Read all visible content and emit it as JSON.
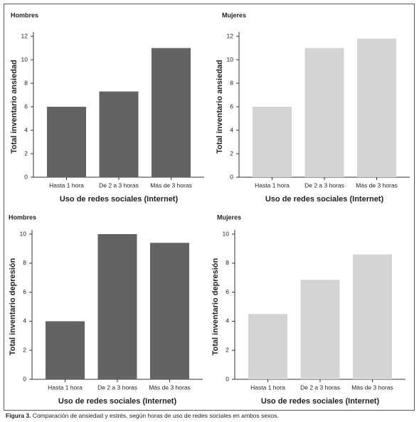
{
  "chart_data": [
    {
      "type": "bar",
      "title": "Hombres",
      "y_label": "Total inventario ansiedad",
      "x_label": "Uso de redes sociales (Internet)",
      "categories": [
        "Hasta 1 hora",
        "De 2 a 3 horas",
        "Más de 3 horas"
      ],
      "values": [
        6,
        7.3,
        11
      ],
      "color": "#636363",
      "ylim": [
        0,
        12
      ],
      "yticks": [
        0,
        2,
        4,
        6,
        8,
        10,
        12
      ]
    },
    {
      "type": "bar",
      "title": "Mujeres",
      "y_label": "Total inventario ansiedad",
      "x_label": "Uso de redes sociales (Internet)",
      "categories": [
        "Hasta 1 hora",
        "De 2 a 3 horas",
        "Más de 3 horas"
      ],
      "values": [
        6,
        11,
        11.8
      ],
      "color": "#d4d4d4",
      "ylim": [
        0,
        12
      ],
      "yticks": [
        0,
        2,
        4,
        6,
        8,
        10,
        12
      ]
    },
    {
      "type": "bar",
      "title": "Hombres",
      "y_label": "Total inventario depresión",
      "x_label": "Uso de redes sociales (Internet)",
      "categories": [
        "Hasta 1 hora",
        "De 2 a 3 horas",
        "Más de 3 horas"
      ],
      "values": [
        4,
        10,
        9.4
      ],
      "color": "#636363",
      "ylim": [
        0,
        10
      ],
      "yticks": [
        0,
        2,
        4,
        6,
        8,
        10
      ]
    },
    {
      "type": "bar",
      "title": "Mujeres",
      "y_label": "Total inventario depresión",
      "x_label": "Uso de redes sociales (Internet)",
      "categories": [
        "Hasta 1 hora",
        "De 2 a 3 horas",
        "Más de 3 horas"
      ],
      "values": [
        4.5,
        6.85,
        8.6
      ],
      "color": "#d4d4d4",
      "ylim": [
        0,
        10
      ],
      "yticks": [
        0,
        2,
        4,
        6,
        8,
        10
      ]
    }
  ],
  "figure_caption": {
    "label": "Figura 3.",
    "text": "Comparación de ansiedad y estrés, según horas de uso de redes sociales en ambos sexos."
  }
}
